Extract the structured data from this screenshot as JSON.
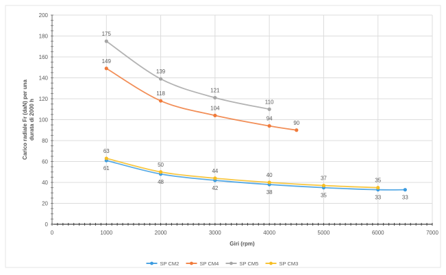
{
  "chart_data": {
    "type": "line",
    "title": "",
    "xlabel": "Giri (rpm)",
    "ylabel_lines": [
      "Carico radiale Fr (daN) per una",
      "durata di 2000 h"
    ],
    "xlim": [
      0,
      7000
    ],
    "ylim": [
      0,
      200
    ],
    "x_ticks": [
      "0",
      "1000",
      "2000",
      "3000",
      "4000",
      "5000",
      "6000",
      "7000"
    ],
    "y_ticks": [
      "0",
      "20",
      "40",
      "60",
      "80",
      "100",
      "120",
      "140",
      "160",
      "180",
      "200"
    ],
    "grid": true,
    "legend_position": "bottom",
    "series": [
      {
        "name": "SP CM2",
        "color": "#3b9be0",
        "x": [
          1000,
          2000,
          3000,
          4000,
          5000,
          6000,
          6500
        ],
        "y": [
          61,
          48,
          42,
          38,
          35,
          33,
          33
        ],
        "labels": [
          "61",
          "48",
          "42",
          "38",
          "35",
          "33",
          "33"
        ],
        "label_pos": "below"
      },
      {
        "name": "SP CM4",
        "color": "#f07a3a",
        "x": [
          1000,
          2000,
          3000,
          4000,
          4500
        ],
        "y": [
          149,
          118,
          104,
          94,
          90
        ],
        "labels": [
          "149",
          "118",
          "104",
          "94",
          "90"
        ],
        "label_pos": "above"
      },
      {
        "name": "SP CM5",
        "color": "#a6a6a6",
        "x": [
          1000,
          2000,
          3000,
          4000
        ],
        "y": [
          175,
          139,
          121,
          110
        ],
        "labels": [
          "175",
          "139",
          "121",
          "110"
        ],
        "label_pos": "above"
      },
      {
        "name": "SP CM3",
        "color": "#f6bd23",
        "x": [
          1000,
          2000,
          3000,
          4000,
          5000,
          6000
        ],
        "y": [
          63,
          50,
          44,
          40,
          37,
          35
        ],
        "labels": [
          "63",
          "50",
          "44",
          "40",
          "37",
          "35"
        ],
        "label_pos": "above"
      }
    ]
  }
}
